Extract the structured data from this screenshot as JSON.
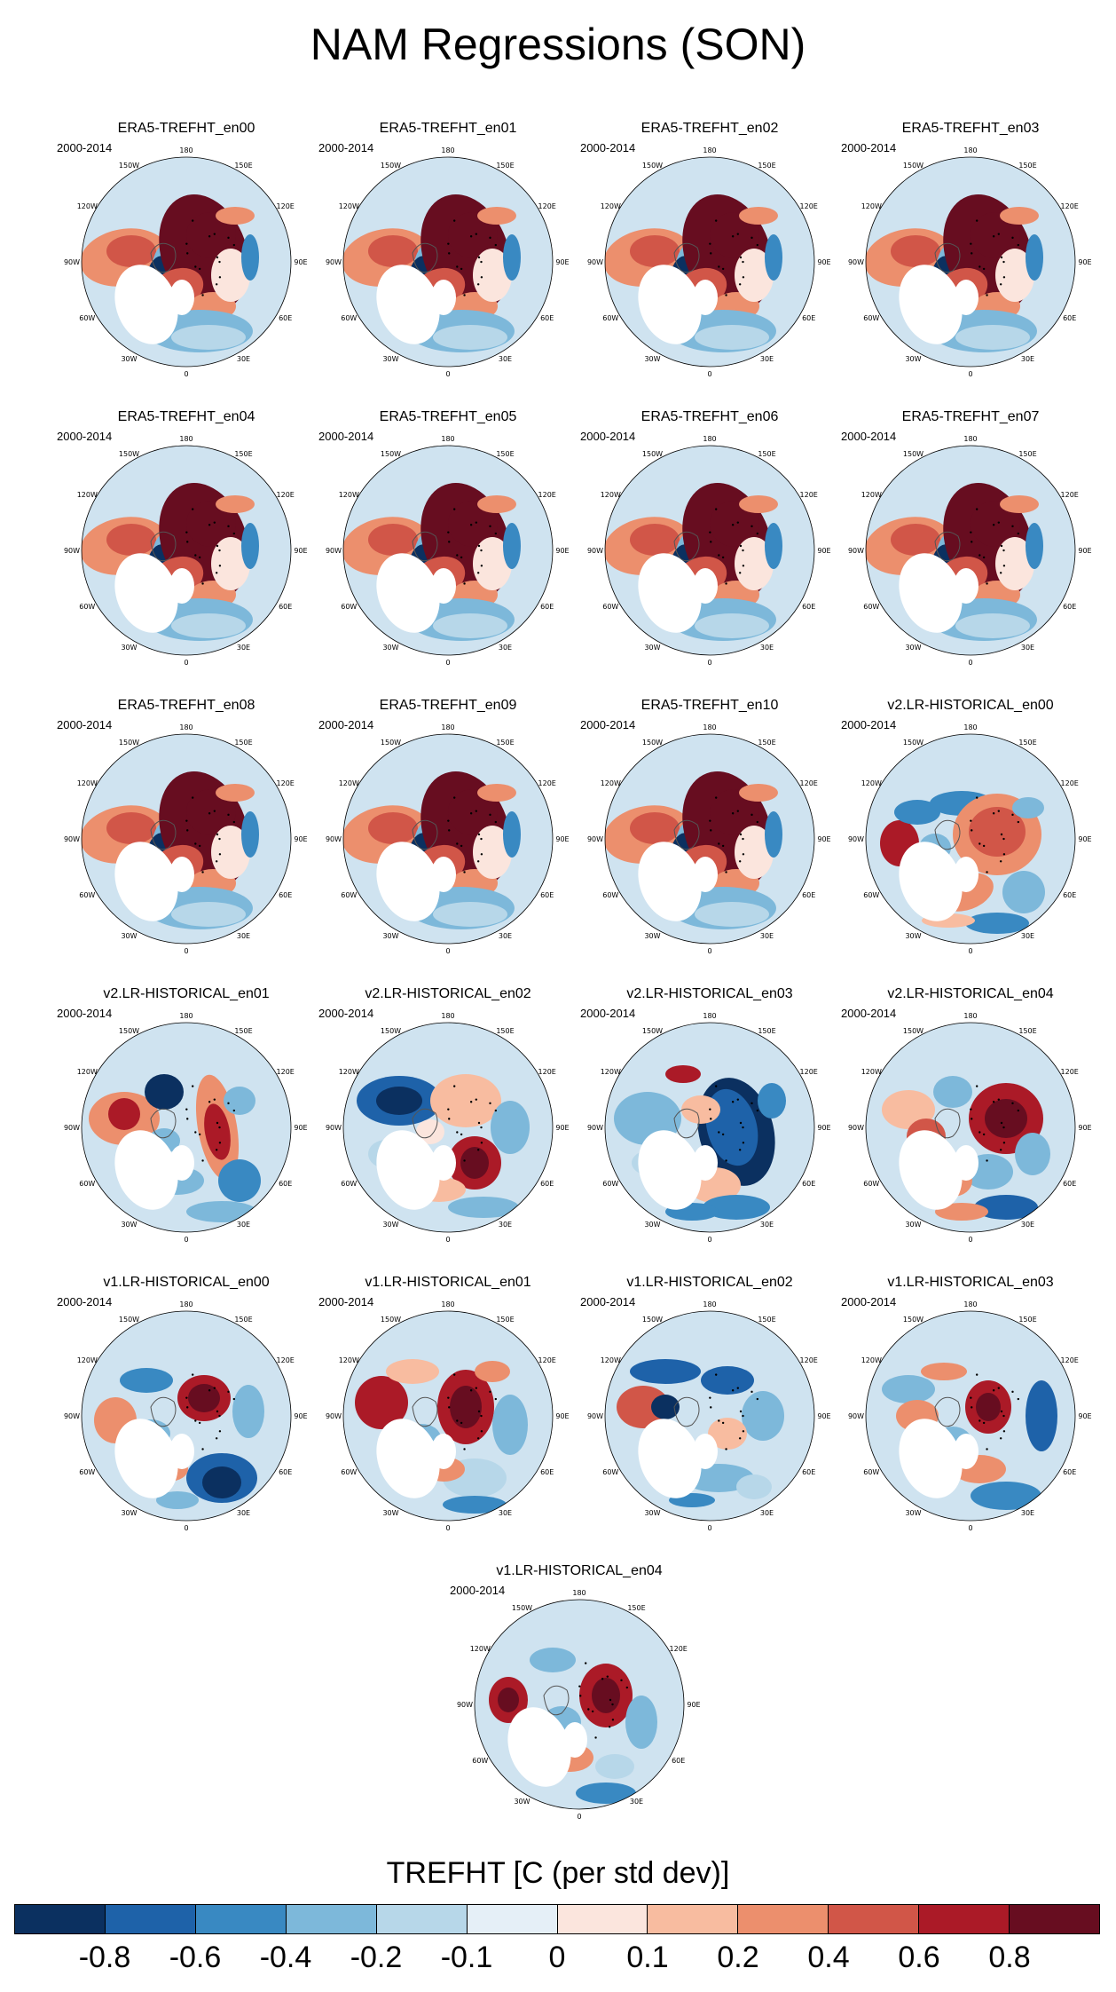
{
  "title": "NAM Regressions (SON)",
  "period": "2000-2014",
  "longitude_labels": [
    "180",
    "150E",
    "120E",
    "90E",
    "60E",
    "30E",
    "0",
    "30W",
    "60W",
    "90W",
    "120W",
    "150W"
  ],
  "panels": [
    {
      "title": "ERA5-TREFHT_en00",
      "pattern": "era5"
    },
    {
      "title": "ERA5-TREFHT_en01",
      "pattern": "era5"
    },
    {
      "title": "ERA5-TREFHT_en02",
      "pattern": "era5"
    },
    {
      "title": "ERA5-TREFHT_en03",
      "pattern": "era5"
    },
    {
      "title": "ERA5-TREFHT_en04",
      "pattern": "era5"
    },
    {
      "title": "ERA5-TREFHT_en05",
      "pattern": "era5"
    },
    {
      "title": "ERA5-TREFHT_en06",
      "pattern": "era5"
    },
    {
      "title": "ERA5-TREFHT_en07",
      "pattern": "era5"
    },
    {
      "title": "ERA5-TREFHT_en08",
      "pattern": "era5"
    },
    {
      "title": "ERA5-TREFHT_en09",
      "pattern": "era5"
    },
    {
      "title": "ERA5-TREFHT_en10",
      "pattern": "era5"
    },
    {
      "title": "v2.LR-HISTORICAL_en00",
      "pattern": "v2a"
    },
    {
      "title": "v2.LR-HISTORICAL_en01",
      "pattern": "v2b"
    },
    {
      "title": "v2.LR-HISTORICAL_en02",
      "pattern": "v2c"
    },
    {
      "title": "v2.LR-HISTORICAL_en03",
      "pattern": "v2d"
    },
    {
      "title": "v2.LR-HISTORICAL_en04",
      "pattern": "v2e"
    },
    {
      "title": "v1.LR-HISTORICAL_en00",
      "pattern": "v1a"
    },
    {
      "title": "v1.LR-HISTORICAL_en01",
      "pattern": "v1b"
    },
    {
      "title": "v1.LR-HISTORICAL_en02",
      "pattern": "v1c"
    },
    {
      "title": "v1.LR-HISTORICAL_en03",
      "pattern": "v1d"
    },
    {
      "title": "v1.LR-HISTORICAL_en04",
      "pattern": "v1e"
    }
  ],
  "colorbar": {
    "title": "TREFHT [C (per std dev)]",
    "labels": [
      "-0.8",
      "-0.6",
      "-0.4",
      "-0.2",
      "-0.1",
      "0",
      "0.1",
      "0.2",
      "0.4",
      "0.6",
      "0.8"
    ],
    "colors": [
      "#0b3060",
      "#1e62a9",
      "#3989c2",
      "#7db8da",
      "#b7d7e9",
      "#e5eff7",
      "#fbe5dd",
      "#f8bca0",
      "#ec8f6d",
      "#d15648",
      "#ab1a27",
      "#670d20"
    ]
  }
}
